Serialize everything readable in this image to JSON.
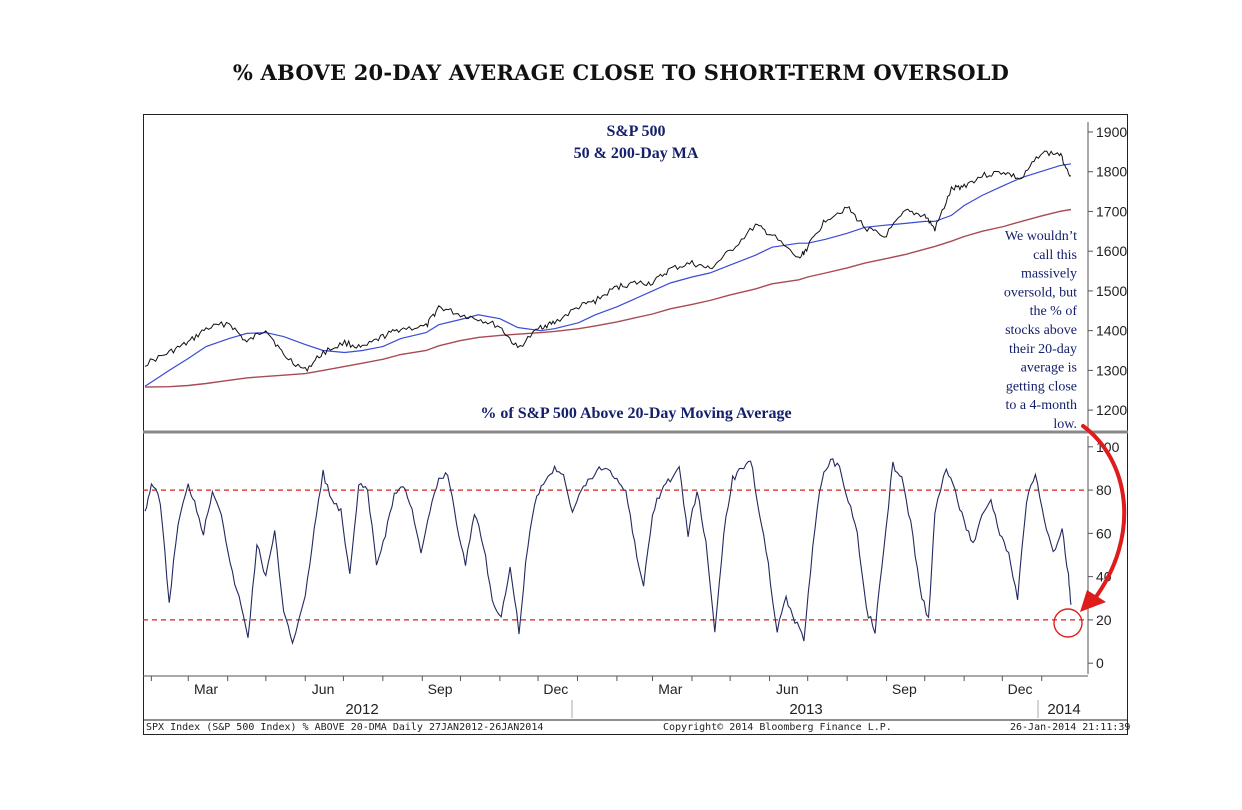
{
  "page": {
    "title": "% ABOVE 20-DAY AVERAGE CLOSE TO SHORT-TERM OVERSOLD",
    "footer_left": "SPX Index (S&P 500 Index) % ABOVE 20-DMA  Daily 27JAN2012-26JAN2014",
    "footer_center": "Copyright© 2014 Bloomberg Finance L.P.",
    "footer_right": "26-Jan-2014 21:11:39"
  },
  "chart_data": [
    {
      "type": "line",
      "title": "S&P 500",
      "subtitle": "50 & 200-Day MA",
      "y_ticks": [
        1200,
        1300,
        1400,
        1500,
        1600,
        1700,
        1800,
        1900
      ],
      "ylim": [
        1150,
        1915
      ],
      "x_ticks": [
        "Mar",
        "Jun",
        "Sep",
        "Dec",
        "Mar",
        "Jun",
        "Sep",
        "Dec"
      ],
      "annotation": [
        "We wouldn’t",
        "call this",
        "massively",
        "oversold, but",
        "the % of",
        "stocks above",
        "their 20-day",
        "average is",
        "getting close",
        "to a 4-month",
        "low."
      ],
      "x": [
        "2012-01-27",
        "2012-02-15",
        "2012-03-01",
        "2012-03-15",
        "2012-04-02",
        "2012-04-16",
        "2012-05-01",
        "2012-05-15",
        "2012-06-01",
        "2012-06-15",
        "2012-07-02",
        "2012-07-16",
        "2012-08-01",
        "2012-08-15",
        "2012-09-04",
        "2012-09-14",
        "2012-10-01",
        "2012-10-15",
        "2012-11-01",
        "2012-11-15",
        "2012-12-03",
        "2012-12-14",
        "2013-01-02",
        "2013-01-15",
        "2013-02-01",
        "2013-02-15",
        "2013-03-01",
        "2013-03-15",
        "2013-04-01",
        "2013-04-15",
        "2013-05-01",
        "2013-05-21",
        "2013-06-03",
        "2013-06-24",
        "2013-07-01",
        "2013-07-15",
        "2013-08-01",
        "2013-08-15",
        "2013-08-30",
        "2013-09-16",
        "2013-10-01",
        "2013-10-09",
        "2013-10-22",
        "2013-11-01",
        "2013-11-15",
        "2013-12-02",
        "2013-12-16",
        "2013-12-31",
        "2014-01-15",
        "2014-01-24"
      ],
      "series": [
        {
          "values": [
            1316,
            1345,
            1370,
            1405,
            1420,
            1370,
            1405,
            1338,
            1300,
            1345,
            1370,
            1356,
            1385,
            1405,
            1410,
            1460,
            1440,
            1430,
            1410,
            1355,
            1410,
            1420,
            1460,
            1475,
            1510,
            1520,
            1520,
            1555,
            1570,
            1555,
            1600,
            1665,
            1640,
            1580,
            1610,
            1680,
            1710,
            1660,
            1635,
            1700,
            1690,
            1655,
            1755,
            1765,
            1790,
            1800,
            1780,
            1848,
            1845,
            1790
          ]
        },
        {
          "name": "50-Day MA",
          "values": [
            1260,
            1300,
            1330,
            1360,
            1380,
            1393,
            1395,
            1385,
            1365,
            1350,
            1345,
            1350,
            1360,
            1380,
            1395,
            1415,
            1428,
            1440,
            1430,
            1408,
            1400,
            1405,
            1420,
            1440,
            1460,
            1480,
            1500,
            1520,
            1535,
            1545,
            1565,
            1590,
            1610,
            1620,
            1620,
            1630,
            1645,
            1660,
            1665,
            1670,
            1675,
            1675,
            1690,
            1715,
            1740,
            1765,
            1785,
            1800,
            1815,
            1820
          ]
        },
        {
          "name": "200-Day MA",
          "values": [
            1258,
            1259,
            1262,
            1267,
            1275,
            1281,
            1285,
            1288,
            1292,
            1300,
            1310,
            1318,
            1328,
            1340,
            1350,
            1362,
            1375,
            1383,
            1388,
            1391,
            1395,
            1398,
            1405,
            1412,
            1422,
            1432,
            1442,
            1455,
            1466,
            1476,
            1490,
            1505,
            1518,
            1528,
            1535,
            1545,
            1558,
            1570,
            1580,
            1592,
            1605,
            1612,
            1625,
            1637,
            1650,
            1662,
            1675,
            1688,
            1700,
            1705
          ]
        }
      ]
    },
    {
      "type": "line",
      "title": "% of S&P 500 Above 20-Day Moving Average",
      "y_ticks": [
        0,
        20,
        40,
        60,
        80,
        100
      ],
      "ylim": [
        -5,
        105
      ],
      "x_ticks": [
        "Mar",
        "Jun",
        "Sep",
        "Dec",
        "Mar",
        "Jun",
        "Sep",
        "Dec"
      ],
      "year_labels": [
        "2012",
        "2013",
        "2014"
      ],
      "reference_lines": [
        80,
        20
      ],
      "x": [
        "2012-01-27",
        "2012-02-01",
        "2012-02-08",
        "2012-02-15",
        "2012-02-22",
        "2012-03-01",
        "2012-03-06",
        "2012-03-13",
        "2012-03-20",
        "2012-03-27",
        "2012-04-03",
        "2012-04-10",
        "2012-04-17",
        "2012-04-24",
        "2012-05-01",
        "2012-05-08",
        "2012-05-15",
        "2012-05-22",
        "2012-06-01",
        "2012-06-08",
        "2012-06-15",
        "2012-06-22",
        "2012-06-29",
        "2012-07-06",
        "2012-07-13",
        "2012-07-20",
        "2012-07-27",
        "2012-08-03",
        "2012-08-10",
        "2012-08-17",
        "2012-08-24",
        "2012-08-31",
        "2012-09-07",
        "2012-09-14",
        "2012-09-21",
        "2012-09-28",
        "2012-10-05",
        "2012-10-12",
        "2012-10-19",
        "2012-10-26",
        "2012-11-02",
        "2012-11-09",
        "2012-11-16",
        "2012-11-23",
        "2012-11-30",
        "2012-12-07",
        "2012-12-14",
        "2012-12-21",
        "2012-12-28",
        "2013-01-04",
        "2013-01-11",
        "2013-01-18",
        "2013-01-25",
        "2013-02-01",
        "2013-02-08",
        "2013-02-15",
        "2013-02-22",
        "2013-03-01",
        "2013-03-08",
        "2013-03-15",
        "2013-03-22",
        "2013-03-29",
        "2013-04-05",
        "2013-04-12",
        "2013-04-19",
        "2013-04-26",
        "2013-05-03",
        "2013-05-10",
        "2013-05-17",
        "2013-05-24",
        "2013-05-31",
        "2013-06-07",
        "2013-06-14",
        "2013-06-21",
        "2013-06-28",
        "2013-07-05",
        "2013-07-12",
        "2013-07-19",
        "2013-07-26",
        "2013-08-02",
        "2013-08-09",
        "2013-08-16",
        "2013-08-23",
        "2013-08-30",
        "2013-09-06",
        "2013-09-13",
        "2013-09-20",
        "2013-09-27",
        "2013-10-04",
        "2013-10-09",
        "2013-10-18",
        "2013-10-25",
        "2013-11-01",
        "2013-11-08",
        "2013-11-15",
        "2013-11-22",
        "2013-11-29",
        "2013-12-06",
        "2013-12-13",
        "2013-12-20",
        "2013-12-27",
        "2014-01-03",
        "2014-01-10",
        "2014-01-17",
        "2014-01-22",
        "2014-01-24"
      ],
      "values": [
        70,
        83,
        75,
        28,
        65,
        82,
        75,
        60,
        80,
        70,
        45,
        30,
        12,
        55,
        40,
        60,
        25,
        10,
        30,
        62,
        88,
        75,
        70,
        40,
        82,
        80,
        45,
        60,
        78,
        82,
        72,
        50,
        70,
        85,
        88,
        65,
        45,
        70,
        55,
        30,
        20,
        45,
        15,
        55,
        78,
        85,
        90,
        88,
        70,
        80,
        85,
        90,
        90,
        85,
        80,
        55,
        35,
        70,
        80,
        85,
        90,
        60,
        80,
        55,
        15,
        60,
        85,
        90,
        95,
        70,
        45,
        15,
        30,
        20,
        10,
        55,
        85,
        95,
        90,
        75,
        60,
        25,
        15,
        55,
        92,
        85,
        65,
        35,
        20,
        70,
        90,
        80,
        65,
        55,
        70,
        75,
        60,
        50,
        30,
        75,
        88,
        65,
        50,
        62,
        40,
        27
      ]
    }
  ]
}
